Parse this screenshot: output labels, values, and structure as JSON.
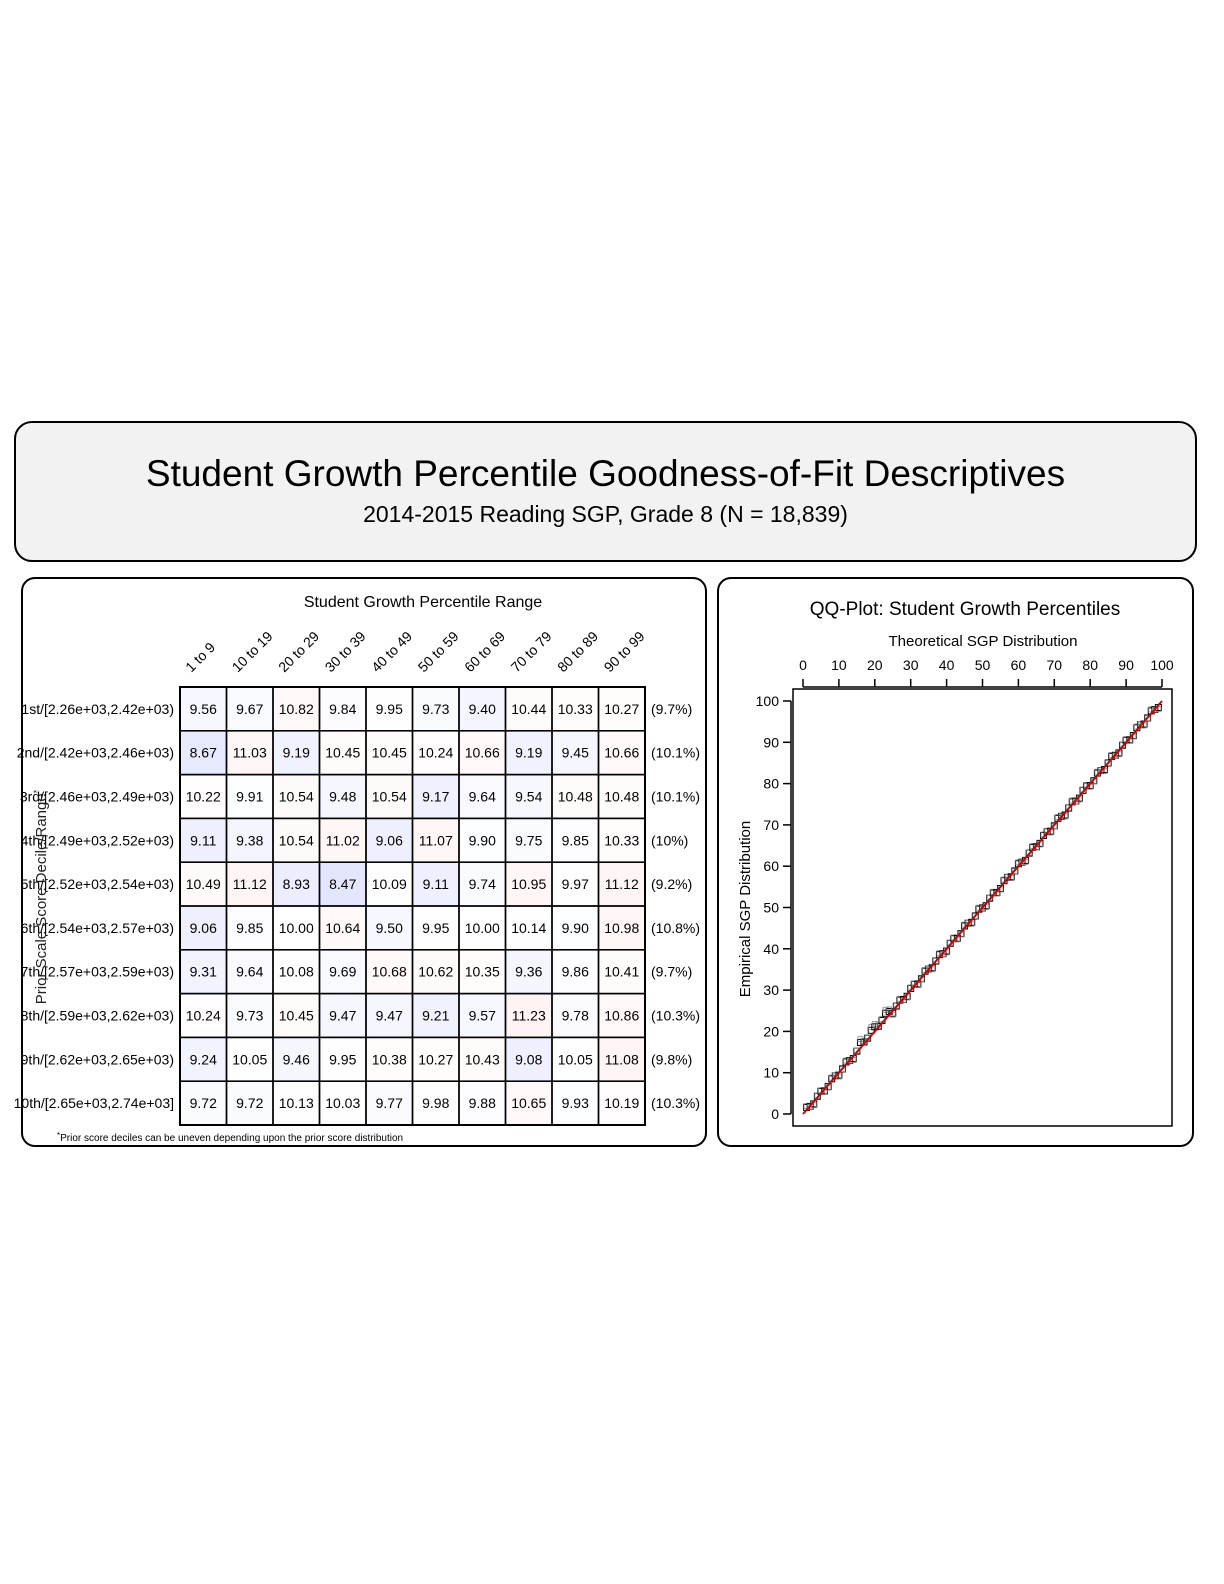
{
  "header": {
    "title": "Student Growth Percentile Goodness-of-Fit Descriptives",
    "subtitle": "2014-2015 Reading SGP, Grade 8 (N = 18,839)"
  },
  "chart_data": [
    {
      "type": "table",
      "title": "Student Growth Percentile Range",
      "ylabel": "Prior Scale Score Decile/Range",
      "ylabel_marker": "*",
      "footnote_marker": "*",
      "footnote": "Prior score deciles can be uneven depending upon the prior score distribution",
      "columns": [
        "1 to 9",
        "10 to 19",
        "20 to 29",
        "30 to 39",
        "40 to 49",
        "50 to 59",
        "60 to 69",
        "70 to 79",
        "80 to 89",
        "90 to 99"
      ],
      "rows": [
        {
          "label": "1st/[2.26e+03,2.42e+03)",
          "values": [
            9.56,
            9.67,
            10.82,
            9.84,
            9.95,
            9.73,
            9.4,
            10.44,
            10.33,
            10.27
          ],
          "percent": "(9.7%)"
        },
        {
          "label": "2nd/[2.42e+03,2.46e+03)",
          "values": [
            8.67,
            11.03,
            9.19,
            10.45,
            10.45,
            10.24,
            10.66,
            9.19,
            9.45,
            10.66
          ],
          "percent": "(10.1%)"
        },
        {
          "label": "3rd/[2.46e+03,2.49e+03)",
          "values": [
            10.22,
            9.91,
            10.54,
            9.48,
            10.54,
            9.17,
            9.64,
            9.54,
            10.48,
            10.48
          ],
          "percent": "(10.1%)"
        },
        {
          "label": "4th/[2.49e+03,2.52e+03)",
          "values": [
            9.11,
            9.38,
            10.54,
            11.02,
            9.06,
            11.07,
            9.9,
            9.75,
            9.85,
            10.33
          ],
          "percent": "(10%)"
        },
        {
          "label": "5th/[2.52e+03,2.54e+03)",
          "values": [
            10.49,
            11.12,
            8.93,
            8.47,
            10.09,
            9.11,
            9.74,
            10.95,
            9.97,
            11.12
          ],
          "percent": "(9.2%)"
        },
        {
          "label": "6th/[2.54e+03,2.57e+03)",
          "values": [
            9.06,
            9.85,
            10.0,
            10.64,
            9.5,
            9.95,
            10.0,
            10.14,
            9.9,
            10.98
          ],
          "percent": "(10.8%)"
        },
        {
          "label": "7th/[2.57e+03,2.59e+03)",
          "values": [
            9.31,
            9.64,
            10.08,
            9.69,
            10.68,
            10.62,
            10.35,
            9.36,
            9.86,
            10.41
          ],
          "percent": "(9.7%)"
        },
        {
          "label": "8th/[2.59e+03,2.62e+03)",
          "values": [
            10.24,
            9.73,
            10.45,
            9.47,
            9.47,
            9.21,
            9.57,
            11.23,
            9.78,
            10.86
          ],
          "percent": "(10.3%)"
        },
        {
          "label": "9th/[2.62e+03,2.65e+03)",
          "values": [
            9.24,
            10.05,
            9.46,
            9.95,
            10.38,
            10.27,
            10.43,
            9.08,
            10.05,
            11.08
          ],
          "percent": "(9.8%)"
        },
        {
          "label": "10th/[2.65e+03,2.74e+03]",
          "values": [
            9.72,
            9.72,
            10.13,
            10.03,
            9.77,
            9.98,
            9.88,
            10.65,
            9.93,
            10.19
          ],
          "percent": "(10.3%)"
        }
      ],
      "colors": {
        "low": "#3344ff",
        "high": "#ff5555"
      }
    },
    {
      "type": "scatter",
      "title": "QQ-Plot: Student Growth Percentiles",
      "xlabel": "Theoretical SGP Distribution",
      "ylabel": "Empirical SGP Distribution",
      "xlim": [
        0,
        100
      ],
      "ylim": [
        0,
        100
      ],
      "xticks": [
        0,
        10,
        20,
        30,
        40,
        50,
        60,
        70,
        80,
        90,
        100
      ],
      "yticks": [
        0,
        10,
        20,
        30,
        40,
        50,
        60,
        70,
        80,
        90,
        100
      ],
      "reference_line": {
        "from": [
          0,
          0
        ],
        "to": [
          100,
          100
        ],
        "color": "#cc0000"
      },
      "points": {
        "start": 1,
        "end": 99,
        "step": 1,
        "relation": "empirical approximately equals theoretical"
      },
      "marker": "square"
    }
  ]
}
